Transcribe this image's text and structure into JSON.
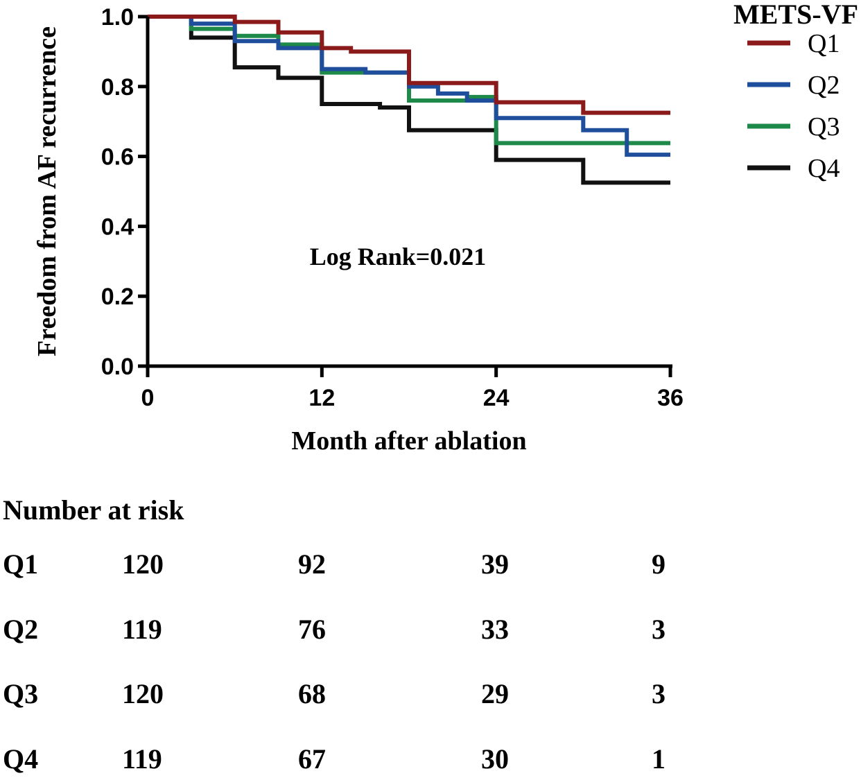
{
  "chart_data": {
    "type": "line",
    "subtype": "kaplan-meier-step",
    "ylabel": "Freedom from AF recurrence",
    "xlabel": "Month after ablation",
    "xlim": [
      0,
      36
    ],
    "ylim": [
      0.0,
      1.0
    ],
    "xticks": [
      0,
      12,
      24,
      36
    ],
    "xtick_labels": [
      "0",
      "12",
      "24",
      "36"
    ],
    "yticks": [
      0.0,
      0.2,
      0.4,
      0.6,
      0.8,
      1.0
    ],
    "ytick_labels": [
      "0.0",
      "0.2",
      "0.4",
      "0.6",
      "0.8",
      "1.0"
    ],
    "annotation": "Log Rank=0.021",
    "legend": {
      "title": "METS-VF",
      "position": "top-right"
    },
    "series": [
      {
        "name": "Q1",
        "color": "#8b1a1a",
        "points": [
          [
            0,
            1.0
          ],
          [
            6,
            1.0
          ],
          [
            6,
            0.985
          ],
          [
            9,
            0.985
          ],
          [
            9,
            0.955
          ],
          [
            12,
            0.955
          ],
          [
            12,
            0.91
          ],
          [
            14,
            0.91
          ],
          [
            14,
            0.9
          ],
          [
            18,
            0.9
          ],
          [
            18,
            0.81
          ],
          [
            24,
            0.81
          ],
          [
            24,
            0.755
          ],
          [
            30,
            0.755
          ],
          [
            30,
            0.725
          ],
          [
            36,
            0.725
          ]
        ]
      },
      {
        "name": "Q2",
        "color": "#1f4e9c",
        "points": [
          [
            0,
            1.0
          ],
          [
            3,
            1.0
          ],
          [
            3,
            0.98
          ],
          [
            6,
            0.98
          ],
          [
            6,
            0.93
          ],
          [
            9,
            0.93
          ],
          [
            9,
            0.91
          ],
          [
            12,
            0.91
          ],
          [
            12,
            0.85
          ],
          [
            15,
            0.85
          ],
          [
            15,
            0.84
          ],
          [
            18,
            0.84
          ],
          [
            18,
            0.8
          ],
          [
            20,
            0.8
          ],
          [
            20,
            0.78
          ],
          [
            22,
            0.78
          ],
          [
            22,
            0.76
          ],
          [
            24,
            0.76
          ],
          [
            24,
            0.71
          ],
          [
            30,
            0.71
          ],
          [
            30,
            0.675
          ],
          [
            33,
            0.675
          ],
          [
            33,
            0.605
          ],
          [
            36,
            0.605
          ]
        ]
      },
      {
        "name": "Q3",
        "color": "#1e8a4a",
        "points": [
          [
            0,
            1.0
          ],
          [
            3,
            1.0
          ],
          [
            3,
            0.965
          ],
          [
            6,
            0.965
          ],
          [
            6,
            0.945
          ],
          [
            9,
            0.945
          ],
          [
            9,
            0.92
          ],
          [
            12,
            0.92
          ],
          [
            12,
            0.84
          ],
          [
            15,
            0.84
          ],
          [
            15,
            0.84
          ],
          [
            18,
            0.84
          ],
          [
            18,
            0.76
          ],
          [
            22,
            0.76
          ],
          [
            22,
            0.77
          ],
          [
            24,
            0.77
          ],
          [
            24,
            0.638
          ],
          [
            36,
            0.638
          ]
        ]
      },
      {
        "name": "Q4",
        "color": "#111111",
        "points": [
          [
            0,
            1.0
          ],
          [
            3,
            1.0
          ],
          [
            3,
            0.94
          ],
          [
            6,
            0.94
          ],
          [
            6,
            0.855
          ],
          [
            9,
            0.855
          ],
          [
            9,
            0.825
          ],
          [
            12,
            0.825
          ],
          [
            12,
            0.75
          ],
          [
            16,
            0.75
          ],
          [
            16,
            0.74
          ],
          [
            18,
            0.74
          ],
          [
            18,
            0.675
          ],
          [
            24,
            0.675
          ],
          [
            24,
            0.59
          ],
          [
            30,
            0.59
          ],
          [
            30,
            0.525
          ],
          [
            36,
            0.525
          ]
        ]
      }
    ]
  },
  "risk_table": {
    "title": "Number at risk",
    "rows": [
      {
        "label": "Q1",
        "values": [
          "120",
          "92",
          "39",
          "9"
        ]
      },
      {
        "label": "Q2",
        "values": [
          "119",
          "76",
          "33",
          "3"
        ]
      },
      {
        "label": "Q3",
        "values": [
          "120",
          "68",
          "29",
          "3"
        ]
      },
      {
        "label": "Q4",
        "values": [
          "119",
          "67",
          "30",
          "1"
        ]
      }
    ]
  }
}
